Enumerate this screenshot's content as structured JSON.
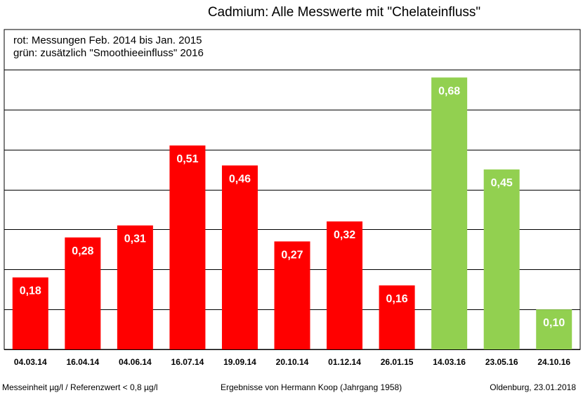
{
  "chart_data": {
    "type": "bar",
    "title": "Cadmium: Alle Messwerte mit \"Chelateinfluss\"",
    "legend_lines": [
      "rot: Messungen Feb. 2014 bis Jan. 2015",
      "grün: zusätzlich \"Smoothieeinfluss\" 2016"
    ],
    "categories": [
      "04.03.14",
      "16.04.14",
      "04.06.14",
      "16.07.14",
      "19.09.14",
      "20.10.14",
      "01.12.14",
      "26.01.15",
      "14.03.16",
      "23.05.16",
      "24.10.16"
    ],
    "values": [
      0.18,
      0.28,
      0.31,
      0.51,
      0.46,
      0.27,
      0.32,
      0.16,
      0.68,
      0.45,
      0.1
    ],
    "value_labels": [
      "0,18",
      "0,28",
      "0,31",
      "0,51",
      "0,46",
      "0,27",
      "0,32",
      "0,16",
      "0,68",
      "0,45",
      "0,10"
    ],
    "groups": [
      "rot",
      "rot",
      "rot",
      "rot",
      "rot",
      "rot",
      "rot",
      "rot",
      "grün",
      "grün",
      "grün"
    ],
    "colors": {
      "rot": "#ff0000",
      "grün": "#92d050"
    },
    "ylim": [
      0,
      0.8
    ],
    "grid": true,
    "grid_step": 0.1,
    "xlabel": "",
    "ylabel": ""
  },
  "footer": {
    "left": "Messeinheit µg/l / Referenzwert < 0,8 µg/l",
    "center": "Ergebnisse von Hermann Koop (Jahrgang 1958)",
    "right": "Oldenburg, 23.01.2018"
  }
}
